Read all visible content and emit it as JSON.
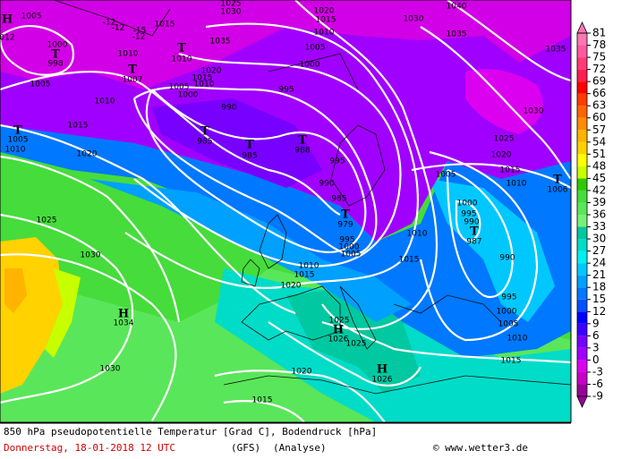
{
  "map": {
    "labels": [
      "1005",
      "H",
      "012",
      "1000",
      "T",
      "998",
      "1015",
      "1010",
      "T",
      "1007",
      "T",
      "1010",
      "1035",
      "1025",
      "1030",
      "1020",
      "1015",
      "1010",
      "1005",
      "1000",
      "995",
      "1020",
      "1015",
      "1010",
      "1005",
      "1000",
      "990",
      "T",
      "985",
      "T",
      "985",
      "T",
      "988",
      "995",
      "990",
      "985",
      "T",
      "979",
      "995",
      "1000",
      "1005",
      "1010",
      "1015",
      "1020",
      "1010",
      "1015",
      "1005",
      "1000",
      "995",
      "990",
      "T",
      "987",
      "990",
      "995",
      "1000",
      "1005",
      "1010",
      "1015",
      "1030",
      "1040",
      "1035",
      "1035",
      "1030",
      "1025",
      "1020",
      "1015",
      "1010",
      "T",
      "1006",
      "1005",
      "1010",
      "1015",
      "T",
      "1005",
      "1010",
      "1020",
      "1025",
      "1030",
      "H",
      "1034",
      "1030",
      "1020",
      "1025",
      "H",
      "1026",
      "1025",
      "H",
      "1026",
      "1015"
    ],
    "temp_labels": [
      "-12",
      "-12",
      "-15",
      "-12"
    ]
  },
  "colorbar": {
    "ticks": [
      -9,
      -6,
      -3,
      0,
      3,
      6,
      9,
      12,
      15,
      18,
      21,
      24,
      27,
      30,
      33,
      36,
      39,
      42,
      45,
      48,
      51,
      54,
      57,
      60,
      63,
      66,
      69,
      72,
      75,
      78,
      81
    ],
    "colors": [
      "#9a009a",
      "#c800c8",
      "#dc00f0",
      "#a000ff",
      "#7800ff",
      "#3c00ff",
      "#0000ff",
      "#0050ff",
      "#0078ff",
      "#00a0ff",
      "#00c8ff",
      "#00f0f0",
      "#00dcc8",
      "#00c8a0",
      "#78f078",
      "#5ae65a",
      "#46dc3c",
      "#32c800",
      "#c8ff00",
      "#ffff00",
      "#ffd200",
      "#ffb400",
      "#ff8c00",
      "#ff6400",
      "#ff3c00",
      "#ff0000",
      "#ff1e50",
      "#ff3c78",
      "#ff5aa0",
      "#ff78b4"
    ]
  },
  "footer": {
    "title": "850 hPa pseudopotentielle Temperatur [Grad C], Bodendruck [hPa]",
    "date": "Donnerstag, 18-01-2018  12 UTC",
    "model": "(GFS)",
    "run": "(Analyse)",
    "credit": "© www.wetter3.de"
  }
}
